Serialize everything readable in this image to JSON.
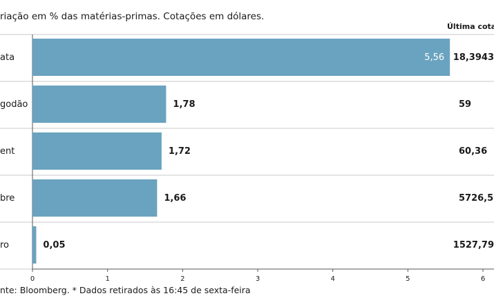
{
  "header": {
    "subtitle": "riação em % das matérias-primas. Cotações em dólares.",
    "last_price_header": "Última cotaç"
  },
  "footer": {
    "source": "nte: Bloomberg.  * Dados retirados às 16:45 de sexta-feira"
  },
  "colors": {
    "bar": "#6aa3bf",
    "grid": "#c8c8c8"
  },
  "chart_data": {
    "type": "bar",
    "orientation": "horizontal",
    "categories": [
      "ata",
      "godão",
      "ent",
      "bre",
      "ro"
    ],
    "values": [
      5.56,
      1.78,
      1.72,
      1.66,
      0.05
    ],
    "value_labels": [
      "5,56",
      "1,78",
      "1,72",
      "1,66",
      "0,05"
    ],
    "last_prices": [
      "18,3943",
      "59",
      "60,36",
      "5726,5",
      "1527,79"
    ],
    "xlim": [
      0,
      6
    ],
    "xticks": [
      "0",
      "1",
      "2",
      "3",
      "4",
      "5",
      "6"
    ],
    "grid": true
  }
}
